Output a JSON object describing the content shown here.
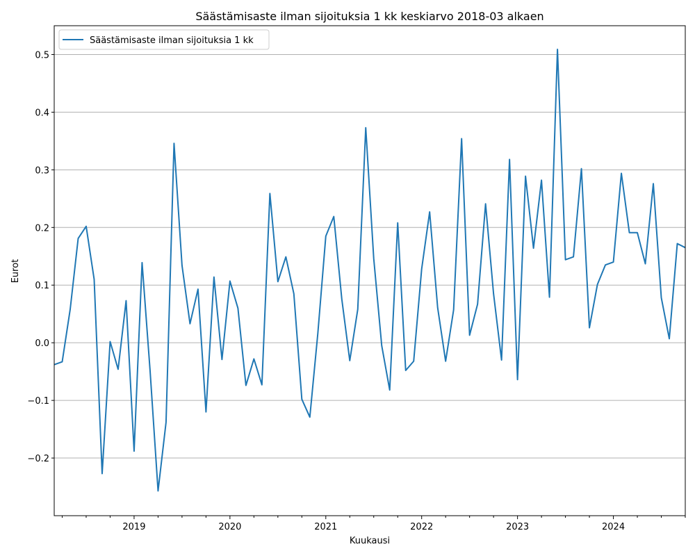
{
  "chart_data": {
    "type": "line",
    "title": "Säästämisaste ilman sijoituksia 1 kk keskiarvo 2018-03 alkaen",
    "xlabel": "Kuukausi",
    "ylabel": "Eurot",
    "xlim": [
      "2018-03",
      "2024-10"
    ],
    "ylim": [
      -0.3,
      0.55
    ],
    "grid": "horizontal",
    "legend_position": "upper-left",
    "x_tick_labels": [
      "2019",
      "2020",
      "2021",
      "2022",
      "2023",
      "2024"
    ],
    "y_tick_labels": [
      "−0.2",
      "−0.1",
      "0.0",
      "0.1",
      "0.2",
      "0.3",
      "0.4",
      "0.5"
    ],
    "series": [
      {
        "name": "Säästämisaste ilman sijoituksia 1 kk",
        "color": "#1f77b4",
        "x": [
          "2018-03",
          "2018-04",
          "2018-05",
          "2018-06",
          "2018-07",
          "2018-08",
          "2018-09",
          "2018-10",
          "2018-11",
          "2018-12",
          "2019-01",
          "2019-02",
          "2019-03",
          "2019-04",
          "2019-05",
          "2019-06",
          "2019-07",
          "2019-08",
          "2019-09",
          "2019-10",
          "2019-11",
          "2019-12",
          "2020-01",
          "2020-02",
          "2020-03",
          "2020-04",
          "2020-05",
          "2020-06",
          "2020-07",
          "2020-08",
          "2020-09",
          "2020-10",
          "2020-11",
          "2020-12",
          "2021-01",
          "2021-02",
          "2021-03",
          "2021-04",
          "2021-05",
          "2021-06",
          "2021-07",
          "2021-08",
          "2021-09",
          "2021-10",
          "2021-11",
          "2021-12",
          "2022-01",
          "2022-02",
          "2022-03",
          "2022-04",
          "2022-05",
          "2022-06",
          "2022-07",
          "2022-08",
          "2022-09",
          "2022-10",
          "2022-11",
          "2022-12",
          "2023-01",
          "2023-02",
          "2023-03",
          "2023-04",
          "2023-05",
          "2023-06",
          "2023-07",
          "2023-08",
          "2023-09",
          "2023-10",
          "2023-11",
          "2023-12",
          "2024-01",
          "2024-02",
          "2024-03",
          "2024-04",
          "2024-05",
          "2024-06",
          "2024-07",
          "2024-08",
          "2024-09",
          "2024-10"
        ],
        "values": [
          -0.038,
          -0.033,
          0.058,
          0.181,
          0.202,
          0.11,
          -0.227,
          0.002,
          -0.046,
          0.073,
          -0.188,
          0.139,
          -0.048,
          -0.257,
          -0.138,
          0.346,
          0.134,
          0.033,
          0.093,
          -0.12,
          0.114,
          -0.029,
          0.107,
          0.06,
          -0.074,
          -0.028,
          -0.073,
          0.259,
          0.106,
          0.149,
          0.085,
          -0.098,
          -0.129,
          0.016,
          0.185,
          0.219,
          0.076,
          -0.031,
          0.058,
          0.373,
          0.146,
          -0.005,
          -0.082,
          0.208,
          -0.048,
          -0.032,
          0.128,
          0.227,
          0.061,
          -0.032,
          0.057,
          0.354,
          0.013,
          0.067,
          0.241,
          0.085,
          -0.03,
          0.318,
          -0.064,
          0.289,
          0.164,
          0.282,
          0.079,
          0.509,
          0.144,
          0.149,
          0.302,
          0.026,
          0.101,
          0.135,
          0.14,
          0.294,
          0.191,
          0.191,
          0.137,
          0.276,
          0.078,
          0.007,
          0.172,
          0.165
        ]
      }
    ]
  }
}
